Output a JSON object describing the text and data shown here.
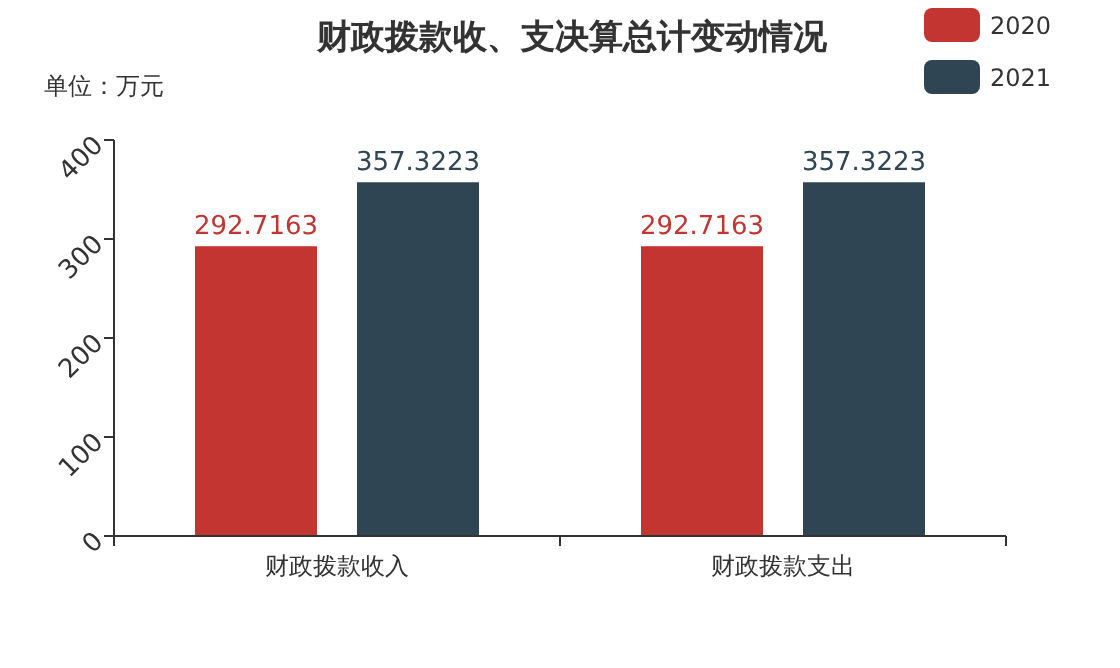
{
  "chart_data": {
    "type": "bar",
    "title": "财政拨款收、支决算总计变动情况",
    "ylabel": "单位：万元",
    "categories": [
      "财政拨款收入",
      "财政拨款支出"
    ],
    "series": [
      {
        "name": "2020",
        "color": "#c23531",
        "values": [
          292.7163,
          292.7163
        ]
      },
      {
        "name": "2021",
        "color": "#2f4554",
        "values": [
          357.3223,
          357.3223
        ]
      }
    ],
    "ylim": [
      0,
      400
    ],
    "yticks": [
      0,
      100,
      200,
      300,
      400
    ],
    "grid": false,
    "legend": "top right",
    "data_labels": true
  }
}
